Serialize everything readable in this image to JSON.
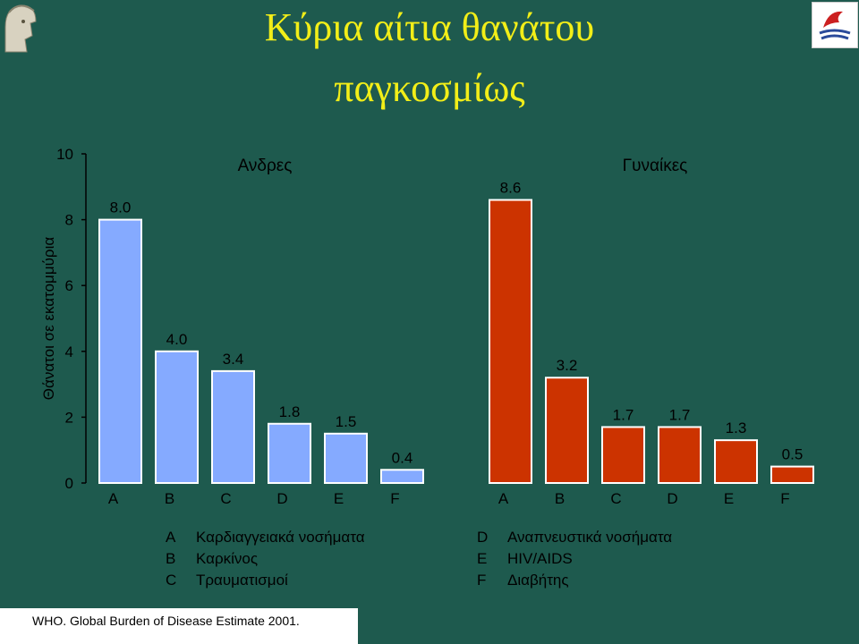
{
  "title": {
    "line1": "Κύρια αίτια θανάτου",
    "line2": "παγκοσμίως"
  },
  "colors": {
    "background": "#1e5a4e",
    "men_bars": "#85aaff",
    "women_bars": "#cc3300",
    "title": "#f2ee18",
    "labels": "#000000"
  },
  "chart_data": {
    "type": "bar",
    "ylabel": "Θάνατοι σε εκατομμύρια",
    "ylim": [
      0,
      10
    ],
    "yticks": [
      "0",
      "2",
      "4",
      "6",
      "8",
      "10"
    ],
    "categories": [
      "A",
      "B",
      "C",
      "D",
      "E",
      "F"
    ],
    "series": [
      {
        "name": "Ανδρες",
        "values": [
          8.0,
          4.0,
          3.4,
          1.8,
          1.5,
          0.4
        ],
        "labels": [
          "8.0",
          "4.0",
          "3.4",
          "1.8",
          "1.5",
          "0.4"
        ]
      },
      {
        "name": "Γυναίκες",
        "values": [
          8.6,
          3.2,
          1.7,
          1.7,
          1.3,
          0.5
        ],
        "labels": [
          "8.6",
          "3.2",
          "1.7",
          "1.7",
          "1.3",
          "0.5"
        ]
      }
    ],
    "grid": false,
    "legend": [
      {
        "key": "A",
        "text": "Καρδιαγγειακά νοσήματα"
      },
      {
        "key": "B",
        "text": "Καρκίνος"
      },
      {
        "key": "C",
        "text": "Τραυματισμοί"
      },
      {
        "key": "D",
        "text": "Αναπνευστικά νοσήματα"
      },
      {
        "key": "E",
        "text": "HIV/AIDS"
      },
      {
        "key": "F",
        "text": "Διαβήτης"
      }
    ]
  },
  "footer": "WHO. Global Burden of Disease Estimate 2001."
}
